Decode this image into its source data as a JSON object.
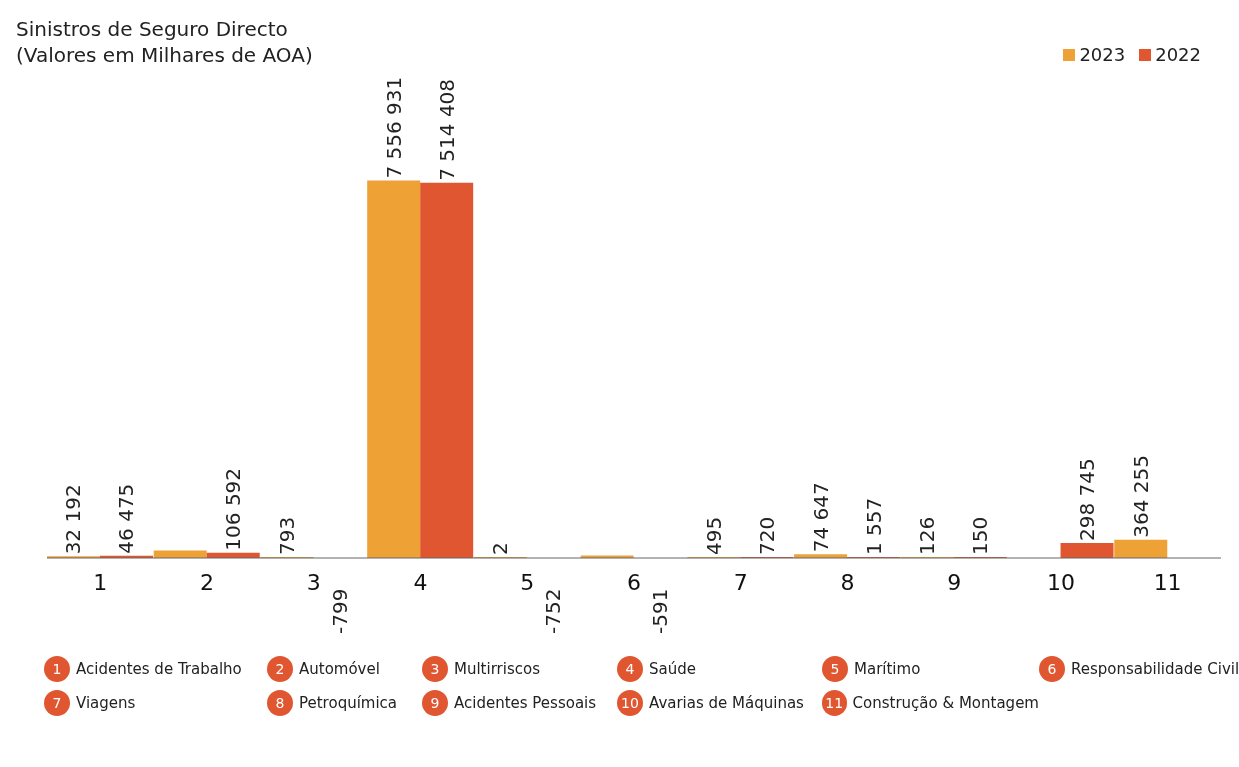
{
  "chart_data": {
    "type": "bar",
    "title": "Sinistros de Seguro Directo\n(Valores em Milhares de AOA)",
    "categories": [
      "1",
      "2",
      "3",
      "4",
      "5",
      "6",
      "7",
      "8",
      "9",
      "10",
      "11"
    ],
    "series": [
      {
        "name": "2023",
        "color": "#eea236",
        "values": [
          32192,
          150000,
          793,
          7556931,
          2,
          50000,
          495,
          74647,
          126,
          null,
          364255
        ],
        "value_labels": [
          "32 192",
          null,
          "793",
          "7 556 931",
          "2",
          null,
          "495",
          "74 647",
          "126",
          null,
          "364 255"
        ]
      },
      {
        "name": "2022",
        "color": "#e05630",
        "values": [
          46475,
          106592,
          -799,
          7514408,
          -752,
          -591,
          720,
          1557,
          150,
          298745,
          null
        ],
        "value_labels": [
          "46 475",
          "106 592",
          "-799",
          "7 514 408",
          "-752",
          "-591",
          "720",
          "1 557",
          "150",
          "298 745",
          null
        ]
      }
    ],
    "legend": "top right",
    "grid": false,
    "annotations": [
      "Acidentes de Trabalho",
      "Automóvel",
      "Multirriscos",
      "Saúde",
      "Marítimo",
      "Responsabilidade Civil",
      "Viagens",
      "Petroquímica",
      "Acidentes Pessoais",
      "Avarias de Máquinas",
      "Construção & Montagem"
    ]
  }
}
